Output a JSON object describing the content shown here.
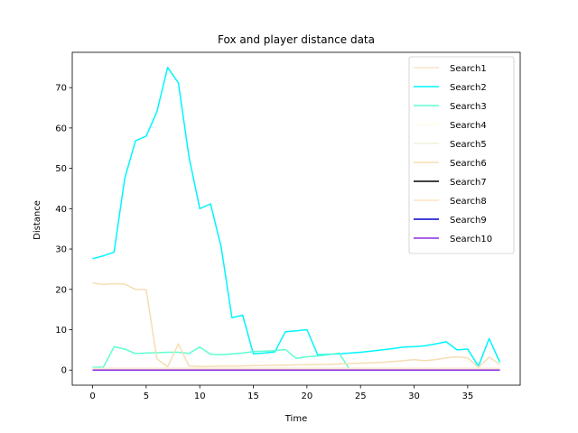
{
  "chart_data": {
    "type": "line",
    "title": "Fox and player distance data",
    "xlabel": "Time",
    "ylabel": "Distance",
    "xlim": [
      -1.9,
      39.9
    ],
    "ylim": [
      -3.75,
      78.75
    ],
    "xticks": [
      0,
      5,
      10,
      15,
      20,
      25,
      30,
      35
    ],
    "yticks": [
      0,
      10,
      20,
      30,
      40,
      50,
      60,
      70
    ],
    "grid": false,
    "legend_position": "top-right",
    "x": [
      0,
      1,
      2,
      3,
      4,
      5,
      6,
      7,
      8,
      9,
      10,
      11,
      12,
      13,
      14,
      15,
      16,
      17,
      18,
      19,
      20,
      21,
      22,
      23,
      24,
      25,
      26,
      27,
      28,
      29,
      30,
      31,
      32,
      33,
      34,
      35,
      36,
      37,
      38
    ],
    "series": [
      {
        "name": "Search1",
        "color": "#f5e6c8",
        "values": [
          0.5,
          0.5,
          0.5,
          0.5,
          0.5,
          0.5,
          0.5,
          0.5,
          0.5,
          0.5,
          0.5,
          0.5,
          0.5,
          0.5,
          0.5,
          0.5,
          0.5,
          0.5,
          0.5,
          0.5,
          0.5,
          0.5,
          0.5,
          0.5,
          0.5,
          0.5,
          0.5,
          0.5,
          0.5,
          0.5,
          0.5,
          0.5,
          0.5,
          0.5,
          0.5,
          0.5,
          0.5,
          0.5,
          0.5
        ]
      },
      {
        "name": "Search2",
        "color": "#00f5ff",
        "values": [
          27.6,
          28.3,
          29.2,
          47.5,
          56.8,
          58.0,
          64.0,
          75.0,
          71.2,
          52.8,
          40.0,
          41.2,
          30.5,
          13.0,
          13.6,
          4.0,
          4.2,
          4.5,
          9.5,
          9.7,
          10.0,
          3.8,
          3.9,
          4.0,
          4.2,
          4.4,
          4.7,
          5.0,
          5.3,
          5.7,
          5.8,
          6.0,
          6.5,
          7.0,
          5.0,
          5.2,
          0.9,
          7.8,
          1.9
        ]
      },
      {
        "name": "Search3",
        "color": "#5effd0",
        "values": [
          0.7,
          0.7,
          5.8,
          5.2,
          4.1,
          4.2,
          4.3,
          4.4,
          4.4,
          4.1,
          5.7,
          3.9,
          3.8,
          4.0,
          4.2,
          4.6,
          4.7,
          4.8,
          5.1,
          2.9,
          3.3,
          3.5,
          3.8,
          4.2,
          0.1,
          0.1,
          0.1,
          0.1,
          0.1,
          0.1,
          0.1,
          0.1,
          0.1,
          0.1,
          0.1,
          0.1,
          0.1,
          0.1,
          0.1
        ]
      },
      {
        "name": "Search4",
        "color": "#fffbe8",
        "values": [
          0.4,
          0.4,
          0.4,
          0.4,
          0.4,
          0.4,
          0.4,
          0.4,
          0.4,
          0.4,
          0.4,
          0.4,
          0.4,
          0.4,
          0.4,
          0.4,
          0.4,
          0.4,
          0.4,
          0.4,
          0.4,
          0.4,
          0.4,
          0.4,
          0.4,
          0.4,
          0.4,
          0.4,
          0.4,
          0.4,
          0.4,
          0.4,
          0.4,
          0.4,
          0.4,
          0.4,
          0.4,
          0.4,
          0.4
        ]
      },
      {
        "name": "Search5",
        "color": "#f2f2dc",
        "values": [
          0.3,
          0.3,
          0.3,
          0.3,
          0.3,
          0.3,
          0.3,
          0.3,
          0.3,
          0.3,
          0.3,
          0.3,
          0.3,
          0.3,
          0.3,
          0.3,
          0.3,
          0.3,
          0.3,
          0.3,
          0.3,
          0.3,
          0.3,
          0.3,
          0.3,
          0.3,
          0.3,
          0.3,
          0.3,
          0.3,
          0.3,
          0.3,
          0.3,
          0.3,
          0.3,
          0.3,
          0.3,
          0.3,
          0.3
        ]
      },
      {
        "name": "Search6",
        "color": "#f5deb3",
        "values": [
          21.6,
          21.2,
          21.4,
          21.3,
          20.0,
          19.9,
          2.8,
          0.8,
          6.5,
          1.0,
          0.9,
          0.9,
          1.0,
          1.0,
          1.0,
          1.1,
          1.1,
          1.2,
          1.2,
          1.3,
          1.3,
          1.4,
          1.4,
          1.5,
          1.6,
          1.7,
          1.8,
          1.9,
          2.1,
          2.3,
          2.6,
          2.3,
          2.6,
          3.0,
          3.3,
          3.0,
          0.7,
          3.2,
          1.4
        ]
      },
      {
        "name": "Search7",
        "color": "#000000",
        "values": [
          0,
          0,
          0,
          0,
          0,
          0,
          0,
          0,
          0,
          0,
          0,
          0,
          0,
          0,
          0,
          0,
          0,
          0,
          0,
          0,
          0,
          0,
          0,
          0,
          0,
          0,
          0,
          0,
          0,
          0,
          0,
          0,
          0,
          0,
          0,
          0,
          0,
          0,
          0
        ]
      },
      {
        "name": "Search8",
        "color": "#ffe4c4",
        "values": [
          0.2,
          0.2,
          0.2,
          0.2,
          0.2,
          0.2,
          0.2,
          0.2,
          0.2,
          0.2,
          0.2,
          0.2,
          0.2,
          0.2,
          0.2,
          0.2,
          0.2,
          0.2,
          0.2,
          0.2,
          0.2,
          0.2,
          0.2,
          0.2,
          0.2,
          0.2,
          0.2,
          0.2,
          0.2,
          0.2,
          0.2,
          0.2,
          0.2,
          0.2,
          0.2,
          0.2,
          0.2,
          0.2,
          0.2
        ]
      },
      {
        "name": "Search9",
        "color": "#0000cd",
        "values": [
          0,
          0,
          0,
          0,
          0,
          0,
          0,
          0,
          0,
          0,
          0,
          0,
          0,
          0,
          0,
          0,
          0,
          0,
          0,
          0,
          0,
          0,
          0,
          0,
          0,
          0,
          0,
          0,
          0,
          0,
          0,
          0,
          0,
          0,
          0,
          0,
          0,
          0,
          0
        ]
      },
      {
        "name": "Search10",
        "color": "#8a2be2",
        "values": [
          0,
          0,
          0,
          0,
          0,
          0,
          0,
          0,
          0,
          0,
          0,
          0,
          0,
          0,
          0,
          0,
          0,
          0,
          0,
          0,
          0,
          0,
          0,
          0,
          0,
          0,
          0,
          0,
          0,
          0,
          0,
          0,
          0,
          0,
          0,
          0,
          0,
          0,
          0
        ]
      }
    ]
  }
}
